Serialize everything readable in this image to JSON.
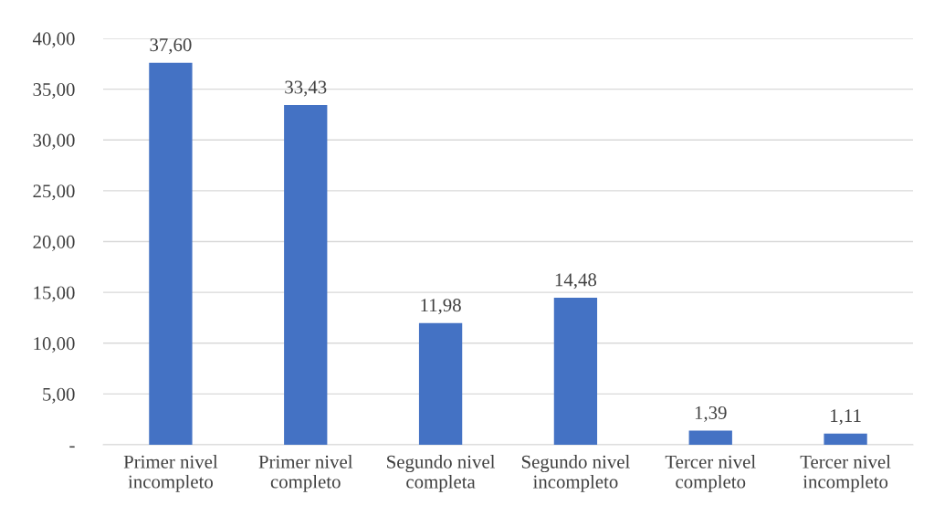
{
  "chart_data": {
    "type": "bar",
    "categories": [
      "Primer nivel\nincompleto",
      "Primer nivel\ncompleto",
      "Segundo nivel\ncompleta",
      "Segundo nivel\nincompleto",
      "Tercer nivel\ncompleto",
      "Tercer nivel\nincompleto"
    ],
    "values": [
      37.6,
      33.43,
      11.98,
      14.48,
      1.39,
      1.11
    ],
    "value_labels": [
      "37,60",
      "33,43",
      "11,98",
      "14,48",
      "1,39",
      "1,11"
    ],
    "color": "#4472c4",
    "ylim": [
      0,
      40
    ],
    "yticks": [
      {
        "value": 0,
        "label": "-"
      },
      {
        "value": 5,
        "label": "5,00"
      },
      {
        "value": 10,
        "label": "10,00"
      },
      {
        "value": 15,
        "label": "15,00"
      },
      {
        "value": 20,
        "label": "20,00"
      },
      {
        "value": 25,
        "label": "25,00"
      },
      {
        "value": 30,
        "label": "30,00"
      },
      {
        "value": 35,
        "label": "35,00"
      },
      {
        "value": 40,
        "label": "40,00"
      }
    ],
    "grid": "y"
  }
}
